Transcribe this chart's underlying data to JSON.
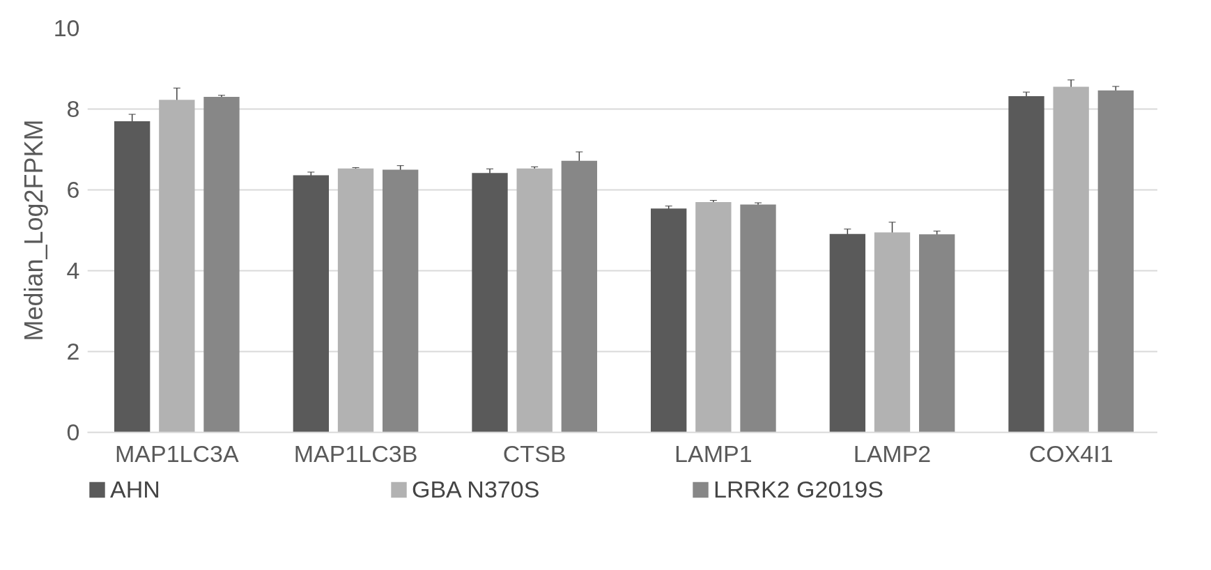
{
  "chart_data": {
    "type": "bar",
    "ylabel": "Median_Log2FPKM",
    "categories": [
      "MAP1LC3A",
      "MAP1LC3B",
      "CTSB",
      "LAMP1",
      "LAMP2",
      "COX4I1"
    ],
    "series": [
      {
        "name": "AHN",
        "color": "#5a5a5a",
        "values": [
          7.7,
          6.36,
          6.42,
          5.54,
          4.91,
          8.32
        ],
        "errors": [
          0.17,
          0.08,
          0.1,
          0.06,
          0.12,
          0.1
        ]
      },
      {
        "name": "GBA N370S",
        "color": "#b2b2b2",
        "values": [
          8.23,
          6.53,
          6.53,
          5.7,
          4.95,
          8.55
        ],
        "errors": [
          0.29,
          0.02,
          0.04,
          0.04,
          0.25,
          0.17
        ]
      },
      {
        "name": "LRRK2 G2019S",
        "color": "#878787",
        "values": [
          8.3,
          6.5,
          6.72,
          5.64,
          4.9,
          8.46
        ],
        "errors": [
          0.04,
          0.1,
          0.22,
          0.04,
          0.08,
          0.1
        ]
      }
    ],
    "ylim": [
      0,
      10
    ],
    "yticks": [
      0,
      2,
      4,
      6,
      8,
      10
    ],
    "grid": "y",
    "legend": "bottom"
  }
}
